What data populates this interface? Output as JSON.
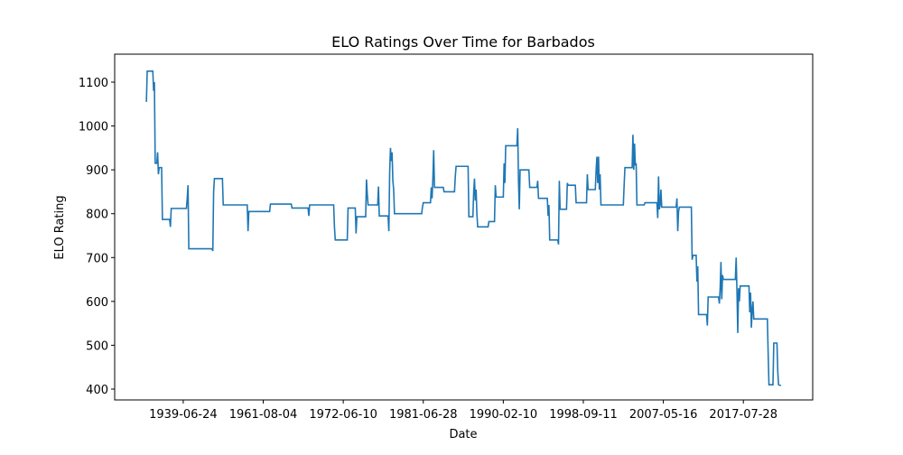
{
  "chart_data": {
    "type": "line",
    "title": "ELO Ratings Over Time for Barbados",
    "xlabel": "Date",
    "ylabel": "ELO Rating",
    "x": [
      54,
      55,
      62,
      63,
      64,
      65,
      67,
      68,
      69,
      70,
      73,
      74,
      83,
      84,
      85,
      104,
      105,
      106,
      107,
      136,
      137,
      138,
      139,
      149,
      150,
      180,
      181,
      182,
      208,
      209,
      235,
      236,
      256,
      257,
      258,
      288,
      289,
      290,
      305,
      306,
      315,
      316,
      317,
      328,
      329,
      330,
      331,
      343,
      344,
      345,
      356,
      357,
      358,
      359,
      360,
      361,
      362,
      363,
      364,
      398,
      399,
      400,
      409,
      410,
      411,
      412,
      413,
      414,
      425,
      426,
      439,
      440,
      441,
      456,
      457,
      462,
      463,
      464,
      465,
      466,
      467,
      468,
      481,
      482,
      489,
      490,
      491,
      500,
      501,
      502,
      503,
      517,
      518,
      519,
      520,
      521,
      532,
      533,
      542,
      543,
      544,
      555,
      556,
      557,
      558,
      568,
      569,
      570,
      571,
      579,
      580,
      581,
      590,
      591,
      604,
      605,
      606,
      615,
      616,
      617,
      618,
      619,
      620,
      621,
      622,
      650,
      651,
      652,
      661,
      662,
      663,
      664,
      665,
      666,
      667,
      676,
      677,
      692,
      693,
      694,
      695,
      696,
      697,
      698,
      716,
      717,
      718,
      719,
      720,
      735,
      736,
      737,
      741,
      742,
      743,
      744,
      754,
      755,
      756,
      769,
      770,
      771,
      772,
      773,
      774,
      775,
      790,
      791,
      792,
      793,
      794,
      795,
      796,
      807,
      808,
      809,
      810,
      811,
      812,
      813,
      830,
      831,
      832,
      837,
      838,
      842,
      843,
      844,
      847
    ],
    "series": [
      {
        "name": "ELO Rating",
        "color": "#1f77b4",
        "values": [
          1055,
          1125,
          1125,
          1080,
          1100,
          915,
          915,
          940,
          890,
          905,
          905,
          787,
          787,
          770,
          812,
          812,
          835,
          865,
          720,
          720,
          715,
          850,
          880,
          880,
          820,
          820,
          760,
          805,
          805,
          822,
          822,
          813,
          813,
          795,
          820,
          820,
          770,
          740,
          740,
          813,
          813,
          755,
          793,
          793,
          878,
          845,
          820,
          820,
          862,
          795,
          795,
          760,
          895,
          950,
          920,
          940,
          875,
          855,
          800,
          800,
          815,
          825,
          825,
          860,
          835,
          880,
          945,
          860,
          860,
          850,
          850,
          885,
          908,
          908,
          793,
          793,
          850,
          880,
          830,
          855,
          800,
          770,
          770,
          782,
          782,
          865,
          838,
          838,
          915,
          870,
          955,
          955,
          995,
          875,
          810,
          900,
          900,
          860,
          860,
          875,
          835,
          835,
          795,
          820,
          740,
          740,
          730,
          875,
          810,
          810,
          870,
          865,
          865,
          825,
          825,
          890,
          855,
          855,
          900,
          930,
          870,
          930,
          855,
          890,
          820,
          820,
          865,
          905,
          905,
          980,
          900,
          960,
          910,
          915,
          820,
          820,
          825,
          825,
          790,
          885,
          810,
          820,
          855,
          815,
          815,
          835,
          760,
          805,
          815,
          815,
          695,
          705,
          705,
          645,
          680,
          570,
          570,
          545,
          610,
          610,
          595,
          630,
          690,
          605,
          660,
          650,
          650,
          700,
          625,
          528,
          630,
          600,
          635,
          635,
          575,
          620,
          540,
          580,
          600,
          560,
          560,
          480,
          410,
          410,
          505,
          505,
          440,
          410,
          408
        ]
      }
    ],
    "xlim": [
      14.35,
      886.65
    ],
    "ylim": [
      375.3,
      1163.8
    ],
    "xticks": [
      {
        "value": 100,
        "label": "1939-06-24"
      },
      {
        "value": 200,
        "label": "1961-08-04"
      },
      {
        "value": 300,
        "label": "1972-06-10"
      },
      {
        "value": 400,
        "label": "1981-06-28"
      },
      {
        "value": 500,
        "label": "1990-02-10"
      },
      {
        "value": 600,
        "label": "1998-09-11"
      },
      {
        "value": 700,
        "label": "2007-05-16"
      },
      {
        "value": 800,
        "label": "2017-07-28"
      }
    ],
    "yticks": [
      400,
      500,
      600,
      700,
      800,
      900,
      1000,
      1100
    ]
  }
}
